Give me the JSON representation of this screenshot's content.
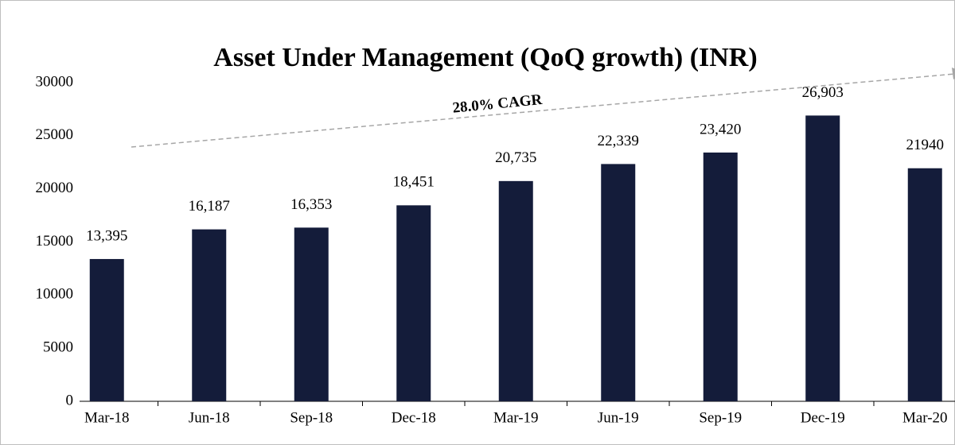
{
  "chart_data": {
    "type": "bar",
    "title": "Asset Under Management (QoQ growth) (INR)",
    "categories": [
      "Mar-18",
      "Jun-18",
      "Sep-18",
      "Dec-18",
      "Mar-19",
      "Jun-19",
      "Sep-19",
      "Dec-19",
      "Mar-20"
    ],
    "values": [
      13395,
      16187,
      16353,
      18451,
      20735,
      22339,
      23420,
      26903,
      21940
    ],
    "value_labels": [
      "13,395",
      "16,187",
      "16,353",
      "18,451",
      "20,735",
      "22,339",
      "23,420",
      "26,903",
      "21940"
    ],
    "color": "#141c3a",
    "ylim": [
      0,
      30000
    ],
    "yticks": [
      0,
      5000,
      10000,
      15000,
      20000,
      25000,
      30000
    ],
    "grid": false,
    "annotation": "28.0% CAGR"
  }
}
